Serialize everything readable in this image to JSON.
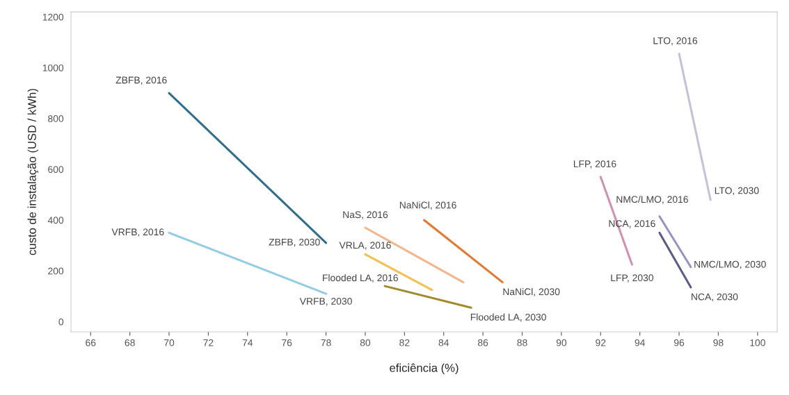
{
  "chart_data": {
    "type": "line",
    "xlabel": "eficiência (%)",
    "ylabel": "custo de instalação (USD / kWh)",
    "xlim": [
      65,
      101
    ],
    "xticks": [
      66,
      68,
      70,
      72,
      74,
      76,
      78,
      80,
      82,
      84,
      86,
      88,
      90,
      92,
      94,
      96,
      98,
      100
    ],
    "ylim": [
      -40,
      1220
    ],
    "yticks": [
      0,
      200,
      400,
      600,
      800,
      1000,
      1200
    ],
    "grid": false,
    "marker": "none",
    "line_style": "solid",
    "series": [
      {
        "color": "#2e6f8e",
        "x": [
          70,
          78
        ],
        "values": [
          900,
          310
        ]
      },
      {
        "color": "#92cde6",
        "x": [
          70,
          78
        ],
        "values": [
          350,
          110
        ]
      },
      {
        "color": "#f6b48a",
        "x": [
          80,
          85
        ],
        "values": [
          370,
          155
        ]
      },
      {
        "color": "#f2c14e",
        "x": [
          80,
          83.4
        ],
        "values": [
          265,
          125
        ]
      },
      {
        "color": "#e8772e",
        "x": [
          83,
          87
        ],
        "values": [
          400,
          155
        ]
      },
      {
        "color": "#a08a2a",
        "x": [
          81,
          85.4
        ],
        "values": [
          140,
          55
        ]
      },
      {
        "color": "#d48fb0",
        "x": [
          92,
          93.6
        ],
        "values": [
          570,
          225
        ]
      },
      {
        "color": "#c8c0d8",
        "x": [
          96,
          97.6
        ],
        "values": [
          1055,
          480
        ]
      },
      {
        "color": "#9c90c8",
        "x": [
          95,
          96.6
        ],
        "values": [
          415,
          215
        ]
      },
      {
        "color": "#5b5a8c",
        "x": [
          95,
          96.6
        ],
        "values": [
          350,
          135
        ]
      }
    ],
    "annotations": [
      {
        "text": "ZBFB, 2016",
        "x": 70,
        "y": 900
      },
      {
        "text": "ZBFB, 2030",
        "x": 78,
        "y": 310
      },
      {
        "text": "VRFB, 2016",
        "x": 70,
        "y": 350
      },
      {
        "text": "VRFB, 2030",
        "x": 78,
        "y": 110
      },
      {
        "text": "NaS, 2016",
        "x": 80,
        "y": 370
      },
      {
        "text": "VRLA, 2016",
        "x": 80,
        "y": 265
      },
      {
        "text": "NaNiCl, 2016",
        "x": 83,
        "y": 400
      },
      {
        "text": "NaNiCl, 2030",
        "x": 87,
        "y": 155
      },
      {
        "text": "Flooded LA, 2016",
        "x": 81,
        "y": 140
      },
      {
        "text": "Flooded LA, 2030",
        "x": 85.4,
        "y": 55
      },
      {
        "text": "LFP, 2016",
        "x": 92,
        "y": 570
      },
      {
        "text": "LFP, 2030",
        "x": 93.6,
        "y": 225
      },
      {
        "text": "LTO, 2016",
        "x": 96,
        "y": 1055
      },
      {
        "text": "LTO, 2030",
        "x": 97.6,
        "y": 480
      },
      {
        "text": "NMC/LMO, 2016",
        "x": 95,
        "y": 415
      },
      {
        "text": "NMC/LMO, 2030",
        "x": 96.6,
        "y": 215
      },
      {
        "text": "NCA, 2016",
        "x": 95,
        "y": 350
      },
      {
        "text": "NCA, 2030",
        "x": 96.6,
        "y": 135
      }
    ]
  }
}
